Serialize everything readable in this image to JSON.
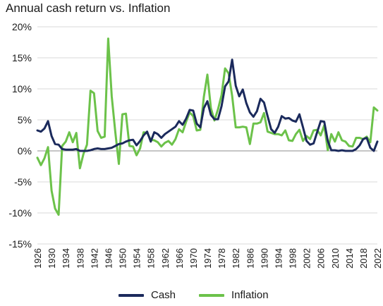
{
  "title": "Annual cash return vs. Inflation",
  "colors": {
    "cash": "#1b2a5c",
    "inflation": "#6cc24a",
    "grid": "#d9d9d9",
    "zero": "#8c8c8c"
  },
  "chart_data": {
    "type": "line",
    "title": "Annual cash return vs. Inflation",
    "xlabel": "",
    "ylabel": "",
    "xlim": [
      1926,
      2022
    ],
    "ylim": [
      -15,
      20
    ],
    "y_ticks": [
      20,
      15,
      10,
      5,
      0,
      -5,
      -10,
      -15
    ],
    "y_tick_labels": [
      "20%",
      "15%",
      "10%",
      "5%",
      "0%",
      "-5%",
      "-10%",
      "-15%"
    ],
    "x_ticks": [
      1926,
      1930,
      1934,
      1938,
      1942,
      1946,
      1950,
      1954,
      1958,
      1962,
      1966,
      1970,
      1974,
      1978,
      1982,
      1986,
      1990,
      1994,
      1998,
      2002,
      2006,
      2010,
      2014,
      2018,
      2022
    ],
    "grid": "horizontal",
    "legend_position": "bottom",
    "series": [
      {
        "name": "Cash",
        "x": [
          1926,
          1927,
          1928,
          1929,
          1930,
          1931,
          1932,
          1933,
          1934,
          1935,
          1936,
          1937,
          1938,
          1939,
          1940,
          1941,
          1942,
          1943,
          1944,
          1945,
          1946,
          1947,
          1948,
          1949,
          1950,
          1951,
          1952,
          1953,
          1954,
          1955,
          1956,
          1957,
          1958,
          1959,
          1960,
          1961,
          1962,
          1963,
          1964,
          1965,
          1966,
          1967,
          1968,
          1969,
          1970,
          1971,
          1972,
          1973,
          1974,
          1975,
          1976,
          1977,
          1978,
          1979,
          1980,
          1981,
          1982,
          1983,
          1984,
          1985,
          1986,
          1987,
          1988,
          1989,
          1990,
          1991,
          1992,
          1993,
          1994,
          1995,
          1996,
          1997,
          1998,
          1999,
          2000,
          2001,
          2002,
          2003,
          2004,
          2005,
          2006,
          2007,
          2008,
          2009,
          2010,
          2011,
          2012,
          2013,
          2014,
          2015,
          2016,
          2017,
          2018,
          2019,
          2020,
          2021,
          2022
        ],
        "values": [
          3.3,
          3.1,
          3.6,
          4.8,
          2.4,
          1.1,
          1.0,
          0.3,
          0.2,
          0.2,
          0.2,
          0.3,
          0.0,
          0.0,
          0.0,
          0.1,
          0.3,
          0.4,
          0.3,
          0.3,
          0.4,
          0.5,
          0.8,
          1.1,
          1.2,
          1.5,
          1.7,
          1.8,
          0.9,
          1.6,
          2.5,
          3.1,
          1.5,
          3.0,
          2.7,
          2.1,
          2.7,
          3.1,
          3.5,
          3.9,
          4.8,
          4.2,
          5.2,
          6.6,
          6.5,
          4.4,
          3.8,
          6.9,
          8.0,
          5.8,
          5.1,
          5.1,
          7.2,
          10.4,
          11.2,
          14.7,
          10.5,
          8.8,
          9.9,
          7.7,
          6.2,
          5.5,
          6.4,
          8.4,
          7.8,
          5.6,
          3.5,
          2.9,
          3.9,
          5.6,
          5.2,
          5.3,
          4.9,
          4.7,
          5.9,
          3.8,
          1.6,
          1.0,
          1.2,
          3.0,
          4.8,
          4.7,
          1.6,
          0.1,
          0.1,
          0.0,
          0.1,
          0.0,
          0.0,
          0.0,
          0.3,
          0.9,
          1.9,
          2.1,
          0.5,
          0.0,
          1.5
        ]
      },
      {
        "name": "Inflation",
        "x": [
          1926,
          1927,
          1928,
          1929,
          1930,
          1931,
          1932,
          1933,
          1934,
          1935,
          1936,
          1937,
          1938,
          1939,
          1940,
          1941,
          1942,
          1943,
          1944,
          1945,
          1946,
          1947,
          1948,
          1949,
          1950,
          1951,
          1952,
          1953,
          1954,
          1955,
          1956,
          1957,
          1958,
          1959,
          1960,
          1961,
          1962,
          1963,
          1964,
          1965,
          1966,
          1967,
          1968,
          1969,
          1970,
          1971,
          1972,
          1973,
          1974,
          1975,
          1976,
          1977,
          1978,
          1979,
          1980,
          1981,
          1982,
          1983,
          1984,
          1985,
          1986,
          1987,
          1988,
          1989,
          1990,
          1991,
          1992,
          1993,
          1994,
          1995,
          1996,
          1997,
          1998,
          1999,
          2000,
          2001,
          2002,
          2003,
          2004,
          2005,
          2006,
          2007,
          2008,
          2009,
          2010,
          2011,
          2012,
          2013,
          2014,
          2015,
          2016,
          2017,
          2018,
          2019,
          2020,
          2021,
          2022
        ],
        "values": [
          -1.1,
          -2.3,
          -1.2,
          0.6,
          -6.4,
          -9.3,
          -10.3,
          0.8,
          1.5,
          3.0,
          1.4,
          2.9,
          -2.8,
          -0.5,
          1.0,
          9.7,
          9.3,
          3.2,
          2.1,
          2.3,
          18.1,
          8.8,
          3.0,
          -2.1,
          5.9,
          6.0,
          0.8,
          0.7,
          -0.7,
          0.4,
          3.0,
          2.9,
          1.8,
          1.7,
          1.4,
          0.7,
          1.3,
          1.6,
          1.0,
          1.9,
          3.5,
          3.0,
          4.7,
          6.2,
          5.6,
          3.3,
          3.4,
          8.7,
          12.3,
          6.9,
          4.9,
          6.7,
          9.0,
          13.3,
          12.5,
          8.9,
          3.8,
          3.8,
          3.9,
          3.8,
          1.1,
          4.4,
          4.4,
          4.6,
          6.1,
          3.1,
          2.9,
          2.7,
          2.7,
          2.5,
          3.3,
          1.7,
          1.6,
          2.7,
          3.4,
          1.6,
          2.4,
          1.9,
          3.3,
          3.4,
          2.5,
          4.1,
          0.1,
          2.7,
          1.5,
          3.0,
          1.7,
          1.5,
          0.8,
          0.7,
          2.1,
          2.1,
          1.9,
          2.3,
          1.4,
          7.0,
          6.5
        ]
      }
    ]
  }
}
